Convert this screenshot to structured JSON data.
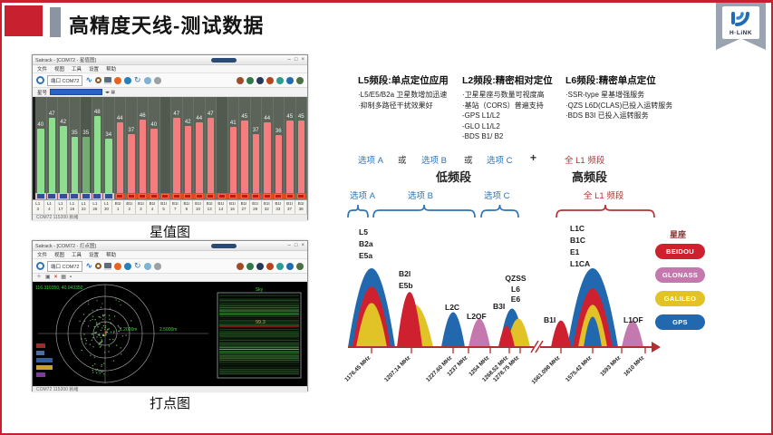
{
  "slide": {
    "title": "高精度天线-测试数据",
    "captions": {
      "bars": "星值图",
      "skyplot": "打点图"
    }
  },
  "logo": {
    "brand": "H·LiNK"
  },
  "colors": {
    "accent_red": "#c8202f",
    "beidou": "#cf2030",
    "glonass": "#c478ad",
    "galileo": "#e2c327",
    "gps": "#2268af"
  },
  "window_bars": {
    "title": "Satrack - [COM72 - 星值图]",
    "menu": [
      "文件",
      "视图",
      "工具",
      "设置",
      "帮助"
    ],
    "port_label": "端口 COM72",
    "filter_label": "星号",
    "controls": [
      "–",
      "□",
      "×"
    ],
    "status": "COM72  115200  就绪"
  },
  "window_sky": {
    "title": "Satrack - [COM72 - 打点图]",
    "menu": [
      "文件",
      "视图",
      "工具",
      "设置",
      "帮助"
    ],
    "port_label": "端口 COM72",
    "controls": [
      "–",
      "□",
      "×"
    ],
    "status": "COM72  115200  就绪",
    "coords": "116.310350, 40.043350",
    "sky_label": "Sky",
    "ring_label_1": "1.2000m",
    "ring_label_2": "2.5000m",
    "marker_value": "99.3"
  },
  "chart_data": {
    "type": "bar",
    "title": "星值图 (卫星信噪比 dB)",
    "ylim": [
      0,
      52
    ],
    "bars": [
      {
        "label": "L1\n3",
        "value": 40,
        "group": "gps"
      },
      {
        "label": "L1\n4",
        "value": 47,
        "group": "gps"
      },
      {
        "label": "L1\n17",
        "value": 42,
        "group": "gps"
      },
      {
        "label": "L1\n19",
        "value": 35,
        "group": "gps"
      },
      {
        "label": "L1\n22",
        "value": 35,
        "group": "gps",
        "dim": true
      },
      {
        "label": "L1\n26",
        "value": 48,
        "group": "gps"
      },
      {
        "label": "L1\n30",
        "value": 34,
        "group": "gps"
      },
      {
        "label": "B1I\n1",
        "value": 44,
        "group": "bds"
      },
      {
        "label": "B1I\n2",
        "value": 37,
        "group": "bds"
      },
      {
        "label": "B1I\n3",
        "value": 46,
        "group": "bds"
      },
      {
        "label": "B1I\n4",
        "value": 40,
        "group": "bds"
      },
      {
        "label": "B1I\n5",
        "value": null,
        "group": "bds"
      },
      {
        "label": "B1I\n7",
        "value": 47,
        "group": "bds"
      },
      {
        "label": "B1I\n8",
        "value": 42,
        "group": "bds"
      },
      {
        "label": "B1I\n10",
        "value": 44,
        "group": "bds"
      },
      {
        "label": "B1I\n13",
        "value": 47,
        "group": "bds"
      },
      {
        "label": "B1I\n14",
        "value": null,
        "group": "bds"
      },
      {
        "label": "B1I\n16",
        "value": 41,
        "group": "bds"
      },
      {
        "label": "B1I\n27",
        "value": 45,
        "group": "bds"
      },
      {
        "label": "B1I\n28",
        "value": 37,
        "group": "bds"
      },
      {
        "label": "B1I\n32",
        "value": 44,
        "group": "bds"
      },
      {
        "label": "B1I\n33",
        "value": 36,
        "group": "bds"
      },
      {
        "label": "B1I\n37",
        "value": 45,
        "group": "bds"
      },
      {
        "label": "B1I\n38",
        "value": 45,
        "group": "bds"
      }
    ]
  },
  "bands": {
    "l5": {
      "title": "L5频段:单点定位应用",
      "items": [
        "·L5/E5/B2a 卫星数增加迅速",
        "·抑制多路径干扰效果好"
      ]
    },
    "l2": {
      "title": "L2频段:精密相对定位",
      "items": [
        "·卫星星座与数量可视度高",
        "·基站（CORS）普遍支持",
        "-GPS L1/L2",
        "-GLO L1/L2",
        "-BDS B1/ B2"
      ]
    },
    "l6": {
      "title": "L6频段:精密单点定位",
      "items": [
        "·SSR-type 星基增强服务",
        "·QZS L6D(CLAS)已投入运转服务",
        "·BDS B3I 已投入运转服务"
      ]
    }
  },
  "options": {
    "choice_a": "选项 A",
    "or": "或",
    "choice_b": "选项 B",
    "choice_c": "选项 C",
    "plus": "+",
    "full_l1": "全 L1 频段",
    "low": "低频段",
    "high": "高频段"
  },
  "spectrum": {
    "labels": {
      "p1": "L5\nB2a\nE5a",
      "p2": "B2l\nE5b",
      "p3": "L2C",
      "p4": "L2OF",
      "p5a": "B3I",
      "p5b": "QZSS\nL6\nE6",
      "p6": "L1C\nB1C\nE1\nL1CA",
      "p6a": "B1I",
      "p7": "L1OF"
    },
    "ticks": [
      "1176.45 MHz",
      "1207.14 MHz",
      "1227.60 MHz",
      "1237 MHz",
      "1254 MHz",
      "1268.52 MHz",
      "1278.75 MHz",
      "1561.098 MHz",
      "1575.42 MHz",
      "1593 MHz",
      "1610 MHz"
    ]
  },
  "legend": {
    "title": "星座",
    "items": [
      {
        "label": "BEIDOU",
        "color": "#cf2030"
      },
      {
        "label": "GLONASS",
        "color": "#c478ad"
      },
      {
        "label": "GALILEO",
        "color": "#e2c327"
      },
      {
        "label": "GPS",
        "color": "#2268af"
      }
    ]
  }
}
